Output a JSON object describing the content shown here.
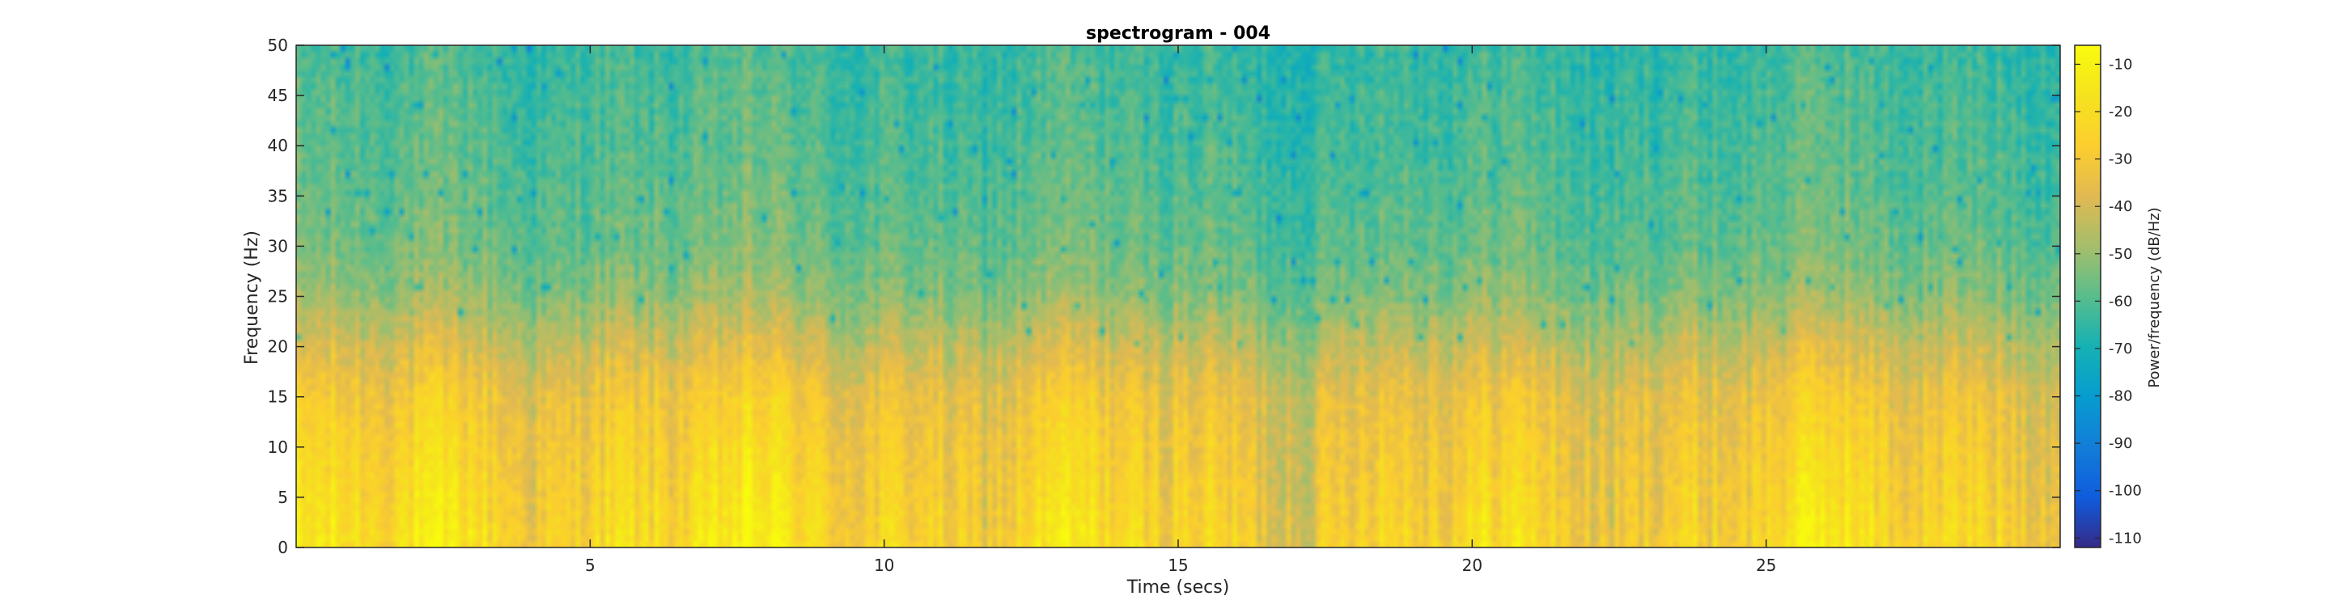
{
  "chart_data": {
    "type": "heatmap",
    "title": "spectrogram - 004",
    "xlabel": "Time (secs)",
    "ylabel": "Frequency (Hz)",
    "xlim": [
      0,
      30
    ],
    "ylim": [
      0,
      50
    ],
    "x_ticks": [
      5,
      10,
      15,
      20,
      25
    ],
    "y_ticks": [
      0,
      5,
      10,
      15,
      20,
      25,
      30,
      35,
      40,
      45,
      50
    ],
    "grid": false,
    "colorbar": {
      "label": "Power/frequency (dB/Hz)",
      "range": [
        -112,
        -6
      ],
      "ticks": [
        -10,
        -20,
        -30,
        -40,
        -50,
        -60,
        -70,
        -80,
        -90,
        -100,
        -110
      ],
      "colormap": "parula"
    },
    "power_profile": {
      "description_units": "dB/Hz",
      "frequencies_hz": [
        0,
        2,
        5,
        10,
        15,
        20,
        25,
        30,
        35,
        40,
        45,
        50
      ],
      "mean_power_db": [
        -22,
        -24,
        -26,
        -29,
        -33,
        -42,
        -52,
        -57,
        -59,
        -61,
        -62,
        -64
      ]
    },
    "colors": {
      "axes": "#262626",
      "title": "#000000",
      "background": "#ffffff"
    }
  }
}
